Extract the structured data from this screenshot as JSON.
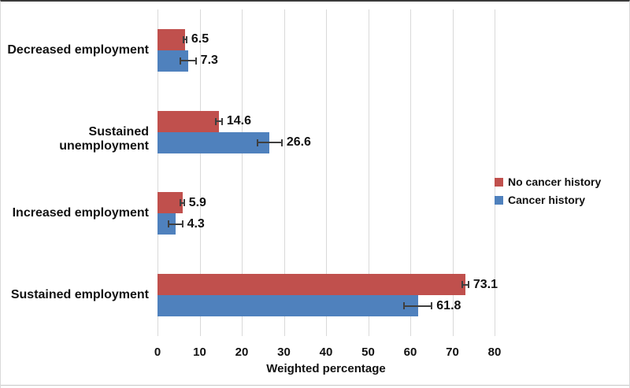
{
  "chart_data": {
    "type": "bar",
    "orientation": "horizontal",
    "categories": [
      "Decreased employment",
      "Sustained unemployment",
      "Increased employment",
      "Sustained employment"
    ],
    "series": [
      {
        "name": "No cancer history",
        "color": "#C0504D",
        "values": [
          6.5,
          14.6,
          5.9,
          73.1
        ],
        "errors": [
          0.4,
          0.7,
          0.4,
          0.7
        ]
      },
      {
        "name": "Cancer history",
        "color": "#4F81BD",
        "values": [
          7.3,
          26.6,
          4.3,
          61.8
        ],
        "errors": [
          1.8,
          2.9,
          1.6,
          3.3
        ]
      }
    ],
    "value_labels": [
      "6.5",
      "14.6",
      "5.9",
      "73.1",
      "7.3",
      "26.6",
      "4.3",
      "61.8"
    ],
    "xlabel": "Weighted percentage",
    "xlim": [
      0,
      80
    ],
    "xticks": [
      "0",
      "10",
      "20",
      "30",
      "40",
      "50",
      "60",
      "70",
      "80"
    ],
    "grid": "vertical",
    "legend_position": "right",
    "gridline_color": "#d9d9d9",
    "error_bar_color": "#3f3f3f",
    "background": "#ffffff"
  }
}
